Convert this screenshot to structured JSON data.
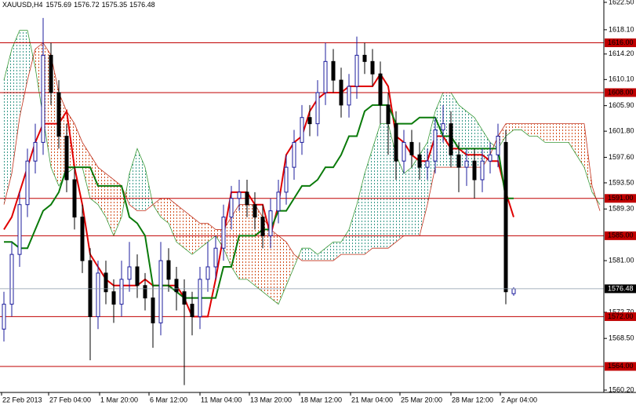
{
  "chart_data": {
    "type": "candlestick",
    "title": "XAUUSD,H4",
    "xlim": [
      -0.5,
      76.5
    ],
    "xticks": [
      {
        "value": -0.3,
        "label": "22 Feb 2013"
      },
      {
        "value": 5.7,
        "label": "27 Feb 04:00"
      },
      {
        "value": 12.2,
        "label": "1 Mar 20:00"
      },
      {
        "value": 18.5,
        "label": "6 Mar 12:00"
      },
      {
        "value": 25,
        "label": "11 Mar 04:00"
      },
      {
        "value": 31.3,
        "label": "13 Mar 20:00"
      },
      {
        "value": 37.7,
        "label": "18 Mar 12:00"
      },
      {
        "value": 44.2,
        "label": "21 Mar 04:00"
      },
      {
        "value": 50.5,
        "label": "25 Mar 20:00"
      },
      {
        "value": 57,
        "label": "28 Mar 12:00"
      },
      {
        "value": 63.3,
        "label": "2 Apr 04:00"
      }
    ],
    "ylim": [
      1560.2,
      1622.5
    ],
    "yticks": [
      {
        "value": 1622.5,
        "label": "1622.50"
      },
      {
        "value": 1618.1,
        "label": "1618.10"
      },
      {
        "value": 1614.2,
        "label": "1614.20"
      },
      {
        "value": 1610.1,
        "label": "1610.10"
      },
      {
        "value": 1605.9,
        "label": "1605.90"
      },
      {
        "value": 1601.8,
        "label": "1601.80"
      },
      {
        "value": 1597.6,
        "label": "1597.60"
      },
      {
        "value": 1593.5,
        "label": "1593.50"
      },
      {
        "value": 1589.3,
        "label": "1589.30"
      },
      {
        "value": 1581,
        "label": "1581.00"
      },
      {
        "value": 1572.7,
        "label": "1572.70"
      },
      {
        "value": 1568.5,
        "label": "1568.50"
      },
      {
        "value": 1560.2,
        "label": "1560.20"
      }
    ],
    "candles": {
      "up_color": "#1c1c9c",
      "down_color": "#000000",
      "open": [
        1570,
        1574,
        1582,
        1590,
        1597,
        1600,
        1614,
        1608,
        1601,
        1594,
        1588,
        1581,
        1572,
        1579,
        1576,
        1574,
        1578,
        1580,
        1577,
        1575,
        1571,
        1581,
        1578,
        1576,
        1574,
        1572,
        1578,
        1580,
        1583,
        1588,
        1591,
        1592,
        1590,
        1588,
        1585,
        1589,
        1592,
        1596,
        1600,
        1604,
        1603,
        1608,
        1613,
        1610,
        1606,
        1609,
        1614,
        1613,
        1611,
        1606,
        1603,
        1597,
        1600,
        1598,
        1596,
        1597,
        1602,
        1603,
        1598,
        1596,
        1597,
        1594,
        1597,
        1598,
        1600,
        1575.69
      ],
      "high": [
        1576,
        1584,
        1592,
        1599,
        1603,
        1620,
        1616,
        1610,
        1603,
        1596,
        1590,
        1583,
        1581,
        1581,
        1578,
        1581,
        1584,
        1582,
        1579,
        1577,
        1584,
        1583,
        1580,
        1578,
        1576,
        1580,
        1584,
        1585,
        1590,
        1593,
        1594,
        1594,
        1592,
        1590,
        1591,
        1594,
        1598,
        1602,
        1606,
        1606,
        1610,
        1616,
        1615,
        1612,
        1611,
        1617,
        1616,
        1615,
        1613,
        1608,
        1605,
        1602,
        1602,
        1600,
        1599,
        1604,
        1606,
        1605,
        1600,
        1599,
        1599,
        1599,
        1600,
        1603,
        1602,
        1576.72
      ],
      "low": [
        1568,
        1572,
        1580,
        1588,
        1595,
        1598,
        1606,
        1599,
        1592,
        1586,
        1579,
        1565,
        1570,
        1574,
        1571,
        1572,
        1576,
        1575,
        1573,
        1567,
        1569,
        1576,
        1573,
        1561,
        1569,
        1570,
        1576,
        1578,
        1581,
        1586,
        1589,
        1588,
        1586,
        1583,
        1583,
        1587,
        1590,
        1594,
        1598,
        1601,
        1601,
        1606,
        1608,
        1604,
        1604,
        1607,
        1611,
        1609,
        1603,
        1598,
        1594,
        1595,
        1596,
        1594,
        1594,
        1595,
        1600,
        1596,
        1592,
        1593,
        1591,
        1592,
        1595,
        1596,
        1574,
        1575.35
      ],
      "close": [
        1574,
        1582,
        1590,
        1597,
        1600,
        1614,
        1608,
        1601,
        1594,
        1588,
        1581,
        1572,
        1579,
        1576,
        1574,
        1578,
        1580,
        1577,
        1575,
        1571,
        1581,
        1578,
        1576,
        1574,
        1572,
        1578,
        1580,
        1583,
        1588,
        1591,
        1592,
        1590,
        1588,
        1585,
        1589,
        1592,
        1596,
        1600,
        1604,
        1603,
        1608,
        1613,
        1610,
        1606,
        1609,
        1614,
        1613,
        1611,
        1606,
        1603,
        1597,
        1600,
        1598,
        1596,
        1597,
        1602,
        1603,
        1598,
        1596,
        1597,
        1594,
        1597,
        1598,
        1601,
        1576,
        1576.48
      ]
    },
    "lines": [
      {
        "color": "#e00000",
        "values": [
          1586,
          1588,
          1592,
          1596,
          1600,
          1603,
          1603,
          1603,
          1605,
          1596,
          1590,
          1582,
          1580,
          1578,
          1577,
          1577,
          1577,
          1577,
          1578,
          1577,
          1577,
          1577,
          1577,
          1575,
          1572,
          1572,
          1572,
          1578,
          1585,
          1592,
          1592,
          1592,
          1590,
          1590,
          1585,
          1590,
          1598,
          1600,
          1601,
          1605,
          1607,
          1608,
          1608,
          1608,
          1609,
          1609,
          1609,
          1609,
          1611,
          1609,
          1601,
          1600,
          1598,
          1597,
          1597,
          1601,
          1601,
          1599,
          1599,
          1598,
          1598,
          1598,
          1597,
          1597,
          1592,
          1588
        ]
      },
      {
        "color": "#0a7a0a",
        "values": [
          1584,
          1584,
          1583,
          1583,
          1586,
          1589,
          1590,
          1592,
          1596,
          1596,
          1596,
          1596,
          1593,
          1593,
          1593,
          1593,
          1588,
          1587,
          1585,
          1577,
          1577,
          1577,
          1576,
          1575,
          1575,
          1575,
          1575,
          1575,
          1580,
          1580,
          1585,
          1585,
          1585,
          1586,
          1586,
          1589,
          1589,
          1591,
          1593,
          1593,
          1594,
          1596,
          1596,
          1598,
          1601,
          1601,
          1605,
          1606,
          1606,
          1606,
          1603,
          1603,
          1603,
          1604,
          1604,
          1604,
          1601,
          1601,
          1599,
          1599,
          1599,
          1599,
          1599,
          1599,
          1591,
          1591
        ]
      }
    ],
    "cloud": {
      "up_color": "#3a9a8a",
      "down_color": "#d2501e",
      "span_a": {
        "color": "#3a9a3a",
        "values": [
          1610,
          1615,
          1618,
          1618,
          1612,
          1604,
          1596,
          1593,
          1595,
          1596,
          1596,
          1591,
          1590,
          1588,
          1585,
          1588,
          1595,
          1599,
          1596,
          1590,
          1588,
          1587,
          1584,
          1583,
          1582,
          1583,
          1584,
          1585,
          1583,
          1580,
          1578,
          1578,
          1577,
          1576,
          1575,
          1574,
          1577,
          1580,
          1583,
          1583,
          1582,
          1583,
          1584,
          1584,
          1586,
          1590,
          1595,
          1599,
          1603,
          1603,
          1598,
          1595,
          1596,
          1598,
          1600,
          1605,
          1608,
          1608,
          1606,
          1605,
          1604,
          1602,
          1600,
          1599,
          1601,
          1602,
          1602,
          1601,
          1601,
          1600,
          1600,
          1600,
          1600,
          1598,
          1596,
          1592,
          1590
        ]
      },
      "span_b": {
        "color": "#c0301a",
        "values": [
          1590,
          1595,
          1604,
          1610,
          1615,
          1616,
          1614,
          1608,
          1605,
          1603,
          1600,
          1598,
          1596,
          1595,
          1594,
          1593,
          1590,
          1589,
          1589,
          1590,
          1591,
          1591,
          1590,
          1589,
          1588,
          1587,
          1587,
          1586,
          1586,
          1588,
          1590,
          1590,
          1590,
          1588,
          1586,
          1585,
          1584,
          1582,
          1581,
          1581,
          1581,
          1581,
          1581,
          1582,
          1582,
          1582,
          1582,
          1583,
          1583,
          1583,
          1584,
          1585,
          1585,
          1585,
          1590,
          1596,
          1596,
          1596,
          1596,
          1596,
          1596,
          1596,
          1598,
          1601,
          1603,
          1603,
          1603,
          1603,
          1603,
          1603,
          1603,
          1603,
          1603,
          1603,
          1603,
          1593,
          1589
        ]
      }
    },
    "levels": {
      "color": "#c00000",
      "values": [
        1616,
        1608,
        1591,
        1585,
        1572,
        1564
      ],
      "value_labels": [
        "1616.00",
        "1608.00",
        "1591.00",
        "1585.00",
        "1572.00",
        "1564.00"
      ]
    }
  }
}
